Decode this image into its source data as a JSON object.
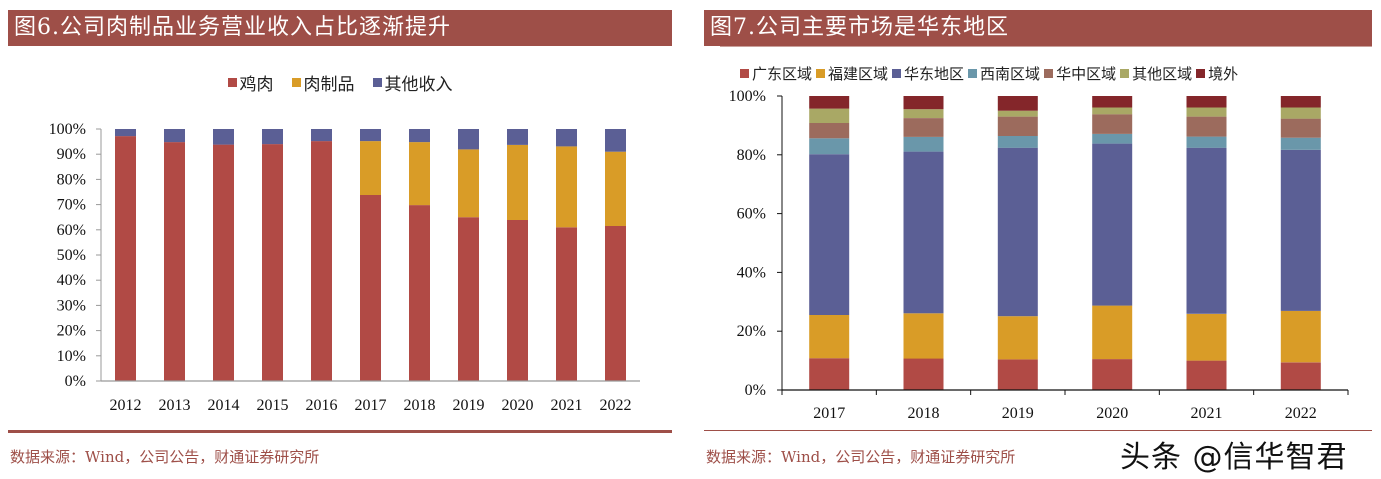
{
  "chart_data": [
    {
      "type": "bar",
      "stacked": true,
      "title": "图6.公司肉制品业务营业收入占比逐渐提升",
      "xlabel": "",
      "ylabel": "",
      "ylim": [
        0,
        100
      ],
      "yticks": [
        "0%",
        "10%",
        "20%",
        "30%",
        "40%",
        "50%",
        "60%",
        "70%",
        "80%",
        "90%",
        "100%"
      ],
      "grid": false,
      "legend_position": "top",
      "categories": [
        "2012",
        "2013",
        "2014",
        "2015",
        "2016",
        "2017",
        "2018",
        "2019",
        "2020",
        "2021",
        "2022"
      ],
      "series": [
        {
          "name": "鸡肉",
          "color": "#b14a45",
          "values": [
            97.2,
            94.8,
            93.8,
            94.0,
            95.2,
            73.8,
            69.8,
            65.0,
            63.9,
            61.0,
            61.5
          ]
        },
        {
          "name": "肉制品",
          "color": "#d99c27",
          "values": [
            0,
            0,
            0,
            0,
            0,
            21.4,
            25.0,
            26.9,
            29.8,
            32.1,
            29.5
          ]
        },
        {
          "name": "其他收入",
          "color": "#5b5f95",
          "values": [
            2.8,
            5.2,
            6.2,
            6.0,
            4.8,
            4.8,
            5.2,
            8.1,
            6.3,
            6.9,
            9.0
          ]
        }
      ],
      "source": "数据来源：Wind，公司公告，财通证券研究所"
    },
    {
      "type": "bar",
      "stacked": true,
      "title": "图7.公司主要市场是华东地区",
      "xlabel": "",
      "ylabel": "",
      "ylim": [
        0,
        100
      ],
      "yticks": [
        "0%",
        "20%",
        "40%",
        "60%",
        "80%",
        "100%"
      ],
      "grid": false,
      "legend_position": "top",
      "categories": [
        "2017",
        "2018",
        "2019",
        "2020",
        "2021",
        "2022"
      ],
      "series": [
        {
          "name": "广东区域",
          "color": "#b14a45",
          "values": [
            10.8,
            10.7,
            10.4,
            10.5,
            10.0,
            9.4
          ]
        },
        {
          "name": "福建区域",
          "color": "#d99c27",
          "values": [
            14.7,
            15.4,
            14.7,
            18.2,
            15.9,
            17.5
          ]
        },
        {
          "name": "华东地区",
          "color": "#5b5f95",
          "values": [
            54.7,
            55.0,
            57.3,
            55.1,
            56.5,
            54.8
          ]
        },
        {
          "name": "西南区域",
          "color": "#6a97aa",
          "values": [
            5.4,
            5.0,
            4.0,
            3.3,
            3.8,
            4.1
          ]
        },
        {
          "name": "华中区域",
          "color": "#9c6b5d",
          "values": [
            5.2,
            6.4,
            6.6,
            6.7,
            6.8,
            6.5
          ]
        },
        {
          "name": "其他区域",
          "color": "#a9a865",
          "values": [
            4.9,
            3.0,
            2.0,
            2.3,
            3.1,
            3.8
          ]
        },
        {
          "name": "境外",
          "color": "#84262a",
          "values": [
            4.3,
            4.5,
            5.0,
            3.9,
            3.9,
            3.9
          ]
        }
      ],
      "source": "数据来源：Wind，公司公告，财通证券研究所"
    }
  ],
  "watermark": "头条 @信华智君",
  "colors": {
    "title_bar": "#9e4f48",
    "source_text": "#9e4f48"
  }
}
